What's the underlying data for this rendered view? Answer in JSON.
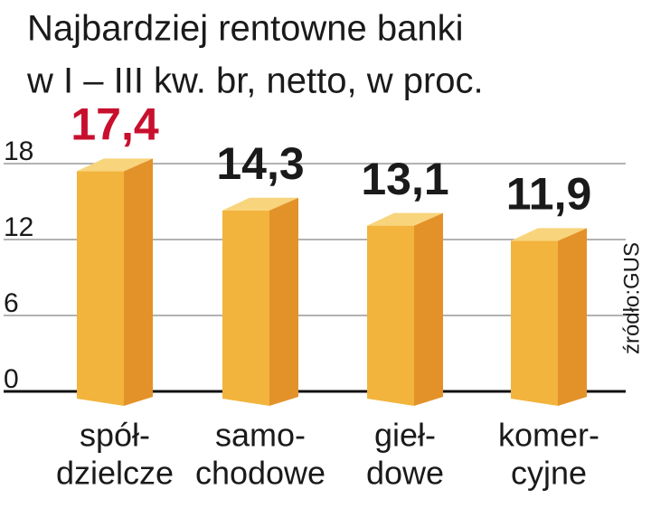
{
  "chart_data": {
    "type": "bar3d",
    "title": [
      "Najbardziej rentowne banki",
      "w I – III kw. br, netto, w proc."
    ],
    "categories": [
      [
        "spół-",
        "dzielcze"
      ],
      [
        "samo-",
        "chodowe"
      ],
      [
        "gieł-",
        "dowe"
      ],
      [
        "komer-",
        "cyjne"
      ]
    ],
    "values": [
      17.4,
      14.3,
      13.1,
      11.9
    ],
    "value_labels": [
      "17,4",
      "14,3",
      "13,1",
      "11,9"
    ],
    "value_label_colors": [
      "#c8102e",
      "#1a1a1a",
      "#1a1a1a",
      "#1a1a1a"
    ],
    "colors": {
      "front": "#f2b43c",
      "side": "#e3922a",
      "top": "#f8d47c"
    },
    "ylim": [
      0,
      18
    ],
    "yticks": [
      0,
      6,
      12,
      18
    ],
    "grid": true,
    "source": "źródło:GUS"
  }
}
